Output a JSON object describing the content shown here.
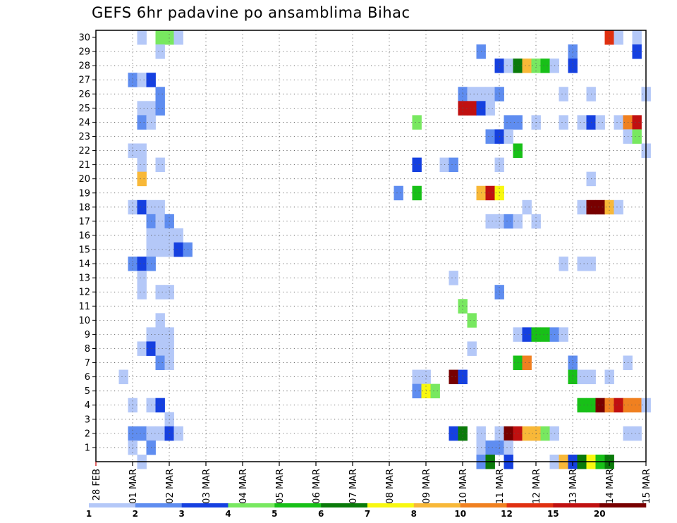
{
  "chart_data": {
    "type": "heatmap",
    "title": "GEFS 6hr padavine po ansamblima Bihac",
    "xlabel": "",
    "ylabel": "",
    "grid": true,
    "x_tick_labels": [
      "28 FEB",
      "01 MAR",
      "02 MAR",
      "03 MAR",
      "04 MAR",
      "05 MAR",
      "06 MAR",
      "07 MAR",
      "08 MAR",
      "09 MAR",
      "10 MAR",
      "11 MAR",
      "12 MAR",
      "13 MAR",
      "14 MAR",
      "15 MAR"
    ],
    "x_range_6hr_steps": [
      0,
      60
    ],
    "y_tick_labels": [
      "1",
      "2",
      "3",
      "4",
      "5",
      "6",
      "7",
      "8",
      "9",
      "10",
      "11",
      "12",
      "13",
      "14",
      "15",
      "16",
      "17",
      "18",
      "19",
      "20",
      "21",
      "22",
      "23",
      "24",
      "25",
      "26",
      "27",
      "28",
      "29",
      "30"
    ],
    "y_range": [
      0,
      30
    ],
    "colorbar": {
      "labels": [
        "1",
        "2",
        "3",
        "4",
        "5",
        "6",
        "7",
        "8",
        "10",
        "12",
        "15",
        "20"
      ],
      "colors": [
        "#b4c8f8",
        "#5f8df0",
        "#1540e0",
        "#78e860",
        "#18c018",
        "#0a7a0a",
        "#f8f810",
        "#f8b838",
        "#f08020",
        "#e03010",
        "#c01010",
        "#780000"
      ]
    },
    "cells": [
      [
        5,
        30,
        1
      ],
      [
        7,
        30,
        4
      ],
      [
        8,
        30,
        4
      ],
      [
        9,
        30,
        1
      ],
      [
        56,
        30,
        10
      ],
      [
        57,
        30,
        1
      ],
      [
        59,
        30,
        1
      ],
      [
        7,
        29,
        1
      ],
      [
        42,
        29,
        2
      ],
      [
        52,
        29,
        2
      ],
      [
        59,
        29,
        3
      ],
      [
        44,
        28,
        3
      ],
      [
        45,
        28,
        1
      ],
      [
        46,
        28,
        6
      ],
      [
        47,
        28,
        8
      ],
      [
        48,
        28,
        4
      ],
      [
        49,
        28,
        5
      ],
      [
        50,
        28,
        1
      ],
      [
        52,
        28,
        3
      ],
      [
        4,
        27,
        2
      ],
      [
        5,
        27,
        1
      ],
      [
        6,
        27,
        3
      ],
      [
        7,
        26,
        2
      ],
      [
        40,
        26,
        2
      ],
      [
        41,
        26,
        1
      ],
      [
        42,
        26,
        1
      ],
      [
        43,
        26,
        1
      ],
      [
        44,
        26,
        2
      ],
      [
        51,
        26,
        1
      ],
      [
        54,
        26,
        1
      ],
      [
        60,
        26,
        1
      ],
      [
        5,
        25,
        1
      ],
      [
        6,
        25,
        1
      ],
      [
        7,
        25,
        2
      ],
      [
        40,
        25,
        11
      ],
      [
        41,
        25,
        11
      ],
      [
        42,
        25,
        3
      ],
      [
        43,
        25,
        1
      ],
      [
        5,
        24,
        2
      ],
      [
        6,
        24,
        1
      ],
      [
        35,
        24,
        4
      ],
      [
        45,
        24,
        2
      ],
      [
        46,
        24,
        2
      ],
      [
        48,
        24,
        1
      ],
      [
        51,
        24,
        1
      ],
      [
        53,
        24,
        1
      ],
      [
        54,
        24,
        3
      ],
      [
        55,
        24,
        1
      ],
      [
        57,
        24,
        1
      ],
      [
        58,
        24,
        9
      ],
      [
        59,
        24,
        11
      ],
      [
        43,
        23,
        2
      ],
      [
        44,
        23,
        3
      ],
      [
        45,
        23,
        1
      ],
      [
        58,
        23,
        1
      ],
      [
        59,
        23,
        4
      ],
      [
        4,
        22,
        1
      ],
      [
        5,
        22,
        1
      ],
      [
        46,
        22,
        5
      ],
      [
        60,
        22,
        1
      ],
      [
        5,
        21,
        1
      ],
      [
        7,
        21,
        1
      ],
      [
        35,
        21,
        3
      ],
      [
        38,
        21,
        1
      ],
      [
        39,
        21,
        2
      ],
      [
        44,
        21,
        1
      ],
      [
        5,
        20,
        8
      ],
      [
        54,
        20,
        1
      ],
      [
        33,
        19,
        2
      ],
      [
        35,
        19,
        5
      ],
      [
        42,
        19,
        8
      ],
      [
        43,
        19,
        11
      ],
      [
        44,
        19,
        7
      ],
      [
        4,
        18,
        1
      ],
      [
        5,
        18,
        3
      ],
      [
        6,
        18,
        1
      ],
      [
        7,
        18,
        1
      ],
      [
        47,
        18,
        1
      ],
      [
        53,
        18,
        1
      ],
      [
        54,
        18,
        12
      ],
      [
        55,
        18,
        12
      ],
      [
        56,
        18,
        8
      ],
      [
        57,
        18,
        1
      ],
      [
        6,
        17,
        2
      ],
      [
        7,
        17,
        1
      ],
      [
        8,
        17,
        2
      ],
      [
        43,
        17,
        1
      ],
      [
        44,
        17,
        1
      ],
      [
        45,
        17,
        2
      ],
      [
        46,
        17,
        1
      ],
      [
        48,
        17,
        1
      ],
      [
        6,
        16,
        1
      ],
      [
        7,
        16,
        1
      ],
      [
        8,
        16,
        1
      ],
      [
        9,
        16,
        1
      ],
      [
        6,
        15,
        1
      ],
      [
        7,
        15,
        1
      ],
      [
        8,
        15,
        1
      ],
      [
        9,
        15,
        3
      ],
      [
        10,
        15,
        2
      ],
      [
        4,
        14,
        2
      ],
      [
        5,
        14,
        3
      ],
      [
        6,
        14,
        2
      ],
      [
        51,
        14,
        1
      ],
      [
        53,
        14,
        1
      ],
      [
        54,
        14,
        1
      ],
      [
        5,
        13,
        1
      ],
      [
        39,
        13,
        1
      ],
      [
        5,
        12,
        1
      ],
      [
        7,
        12,
        1
      ],
      [
        8,
        12,
        1
      ],
      [
        44,
        12,
        2
      ],
      [
        40,
        11,
        4
      ],
      [
        7,
        10,
        1
      ],
      [
        41,
        10,
        4
      ],
      [
        6,
        9,
        1
      ],
      [
        7,
        9,
        1
      ],
      [
        8,
        9,
        1
      ],
      [
        46,
        9,
        1
      ],
      [
        47,
        9,
        3
      ],
      [
        48,
        9,
        5
      ],
      [
        49,
        9,
        5
      ],
      [
        50,
        9,
        2
      ],
      [
        51,
        9,
        1
      ],
      [
        5,
        8,
        1
      ],
      [
        6,
        8,
        3
      ],
      [
        7,
        8,
        1
      ],
      [
        8,
        8,
        1
      ],
      [
        41,
        8,
        1
      ],
      [
        7,
        7,
        2
      ],
      [
        8,
        7,
        1
      ],
      [
        46,
        7,
        5
      ],
      [
        47,
        7,
        9
      ],
      [
        52,
        7,
        2
      ],
      [
        58,
        7,
        1
      ],
      [
        3,
        6,
        1
      ],
      [
        35,
        6,
        1
      ],
      [
        36,
        6,
        1
      ],
      [
        39,
        6,
        12
      ],
      [
        40,
        6,
        3
      ],
      [
        52,
        6,
        5
      ],
      [
        53,
        6,
        1
      ],
      [
        54,
        6,
        1
      ],
      [
        56,
        6,
        1
      ],
      [
        35,
        5,
        2
      ],
      [
        36,
        5,
        7
      ],
      [
        37,
        5,
        4
      ],
      [
        4,
        4,
        1
      ],
      [
        6,
        4,
        1
      ],
      [
        7,
        4,
        3
      ],
      [
        53,
        4,
        5
      ],
      [
        54,
        4,
        5
      ],
      [
        55,
        4,
        12
      ],
      [
        56,
        4,
        9
      ],
      [
        57,
        4,
        11
      ],
      [
        58,
        4,
        9
      ],
      [
        59,
        4,
        9
      ],
      [
        60,
        4,
        1
      ],
      [
        8,
        3,
        1
      ],
      [
        4,
        2,
        2
      ],
      [
        5,
        2,
        2
      ],
      [
        6,
        2,
        1
      ],
      [
        7,
        2,
        1
      ],
      [
        8,
        2,
        3
      ],
      [
        9,
        2,
        1
      ],
      [
        39,
        2,
        3
      ],
      [
        40,
        2,
        6
      ],
      [
        42,
        2,
        1
      ],
      [
        44,
        2,
        1
      ],
      [
        45,
        2,
        12
      ],
      [
        46,
        2,
        11
      ],
      [
        47,
        2,
        8
      ],
      [
        48,
        2,
        8
      ],
      [
        49,
        2,
        4
      ],
      [
        50,
        2,
        1
      ],
      [
        58,
        2,
        1
      ],
      [
        59,
        2,
        1
      ],
      [
        4,
        1,
        1
      ],
      [
        6,
        1,
        2
      ],
      [
        42,
        1,
        1
      ],
      [
        43,
        1,
        2
      ],
      [
        44,
        1,
        2
      ],
      [
        45,
        1,
        1
      ],
      [
        5,
        0,
        1
      ],
      [
        42,
        0,
        2
      ],
      [
        43,
        0,
        6
      ],
      [
        45,
        0,
        3
      ],
      [
        50,
        0,
        1
      ],
      [
        51,
        0,
        8
      ],
      [
        52,
        0,
        3
      ],
      [
        53,
        0,
        6
      ],
      [
        54,
        0,
        7
      ],
      [
        55,
        0,
        5
      ],
      [
        56,
        0,
        6
      ]
    ]
  }
}
